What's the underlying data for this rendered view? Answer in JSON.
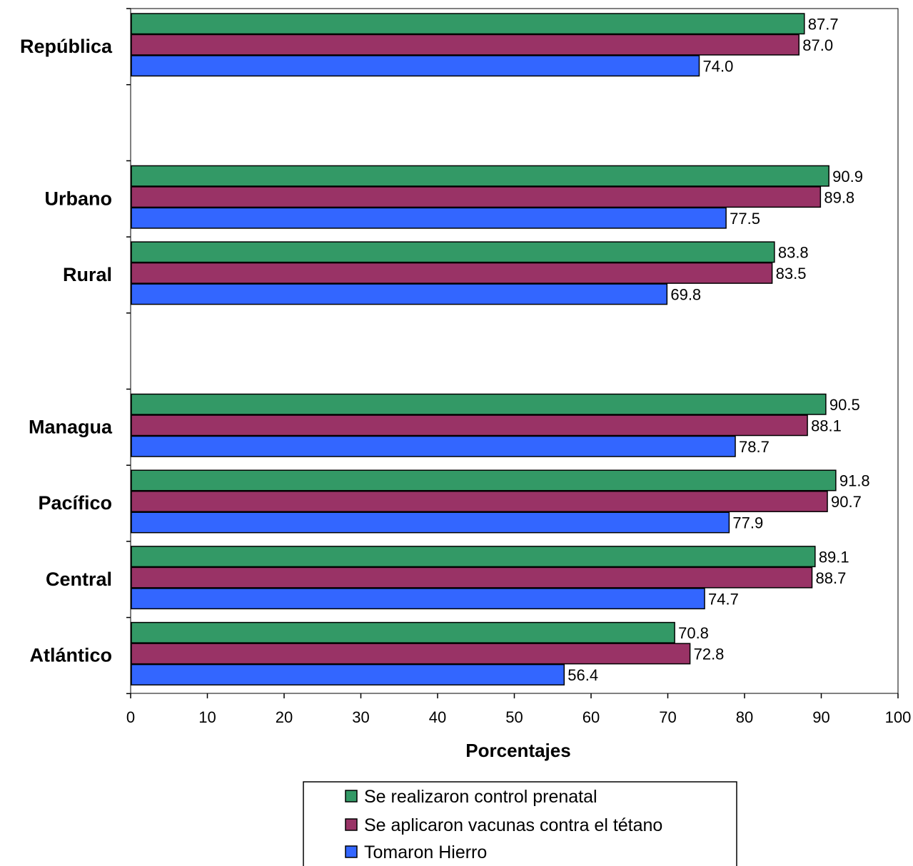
{
  "chart_data": {
    "type": "bar",
    "orientation": "horizontal",
    "xlabel": "Porcentajes",
    "xlim": [
      0,
      100
    ],
    "xticks": [
      "0",
      "10",
      "20",
      "30",
      "40",
      "50",
      "60",
      "70",
      "80",
      "90",
      "100"
    ],
    "grid": false,
    "legend_position": "bottom",
    "categories": [
      "República",
      "Urbano",
      "Rural",
      "Managua",
      "Pacífico",
      "Central",
      "Atlántico"
    ],
    "series": [
      {
        "name": "Se realizaron control prenatal",
        "color": "#339966",
        "values": [
          87.7,
          90.9,
          83.8,
          90.5,
          91.8,
          89.1,
          70.8
        ],
        "labels": [
          "87.7",
          "90.9",
          "83.8",
          "90.5",
          "91.8",
          "89.1",
          "70.8"
        ]
      },
      {
        "name": "Se aplicaron vacunas contra el tétano",
        "color": "#993366",
        "values": [
          87.0,
          89.8,
          83.5,
          88.1,
          90.7,
          88.7,
          72.8
        ],
        "labels": [
          "87.0",
          "89.8",
          "83.5",
          "88.1",
          "90.7",
          "88.7",
          "72.8"
        ]
      },
      {
        "name": "Tomaron Hierro",
        "color": "#3366FF",
        "values": [
          74.0,
          77.5,
          69.8,
          78.7,
          77.9,
          74.7,
          56.4
        ],
        "labels": [
          "74.0",
          "77.5",
          "69.8",
          "78.7",
          "77.9",
          "74.7",
          "56.4"
        ]
      }
    ]
  }
}
